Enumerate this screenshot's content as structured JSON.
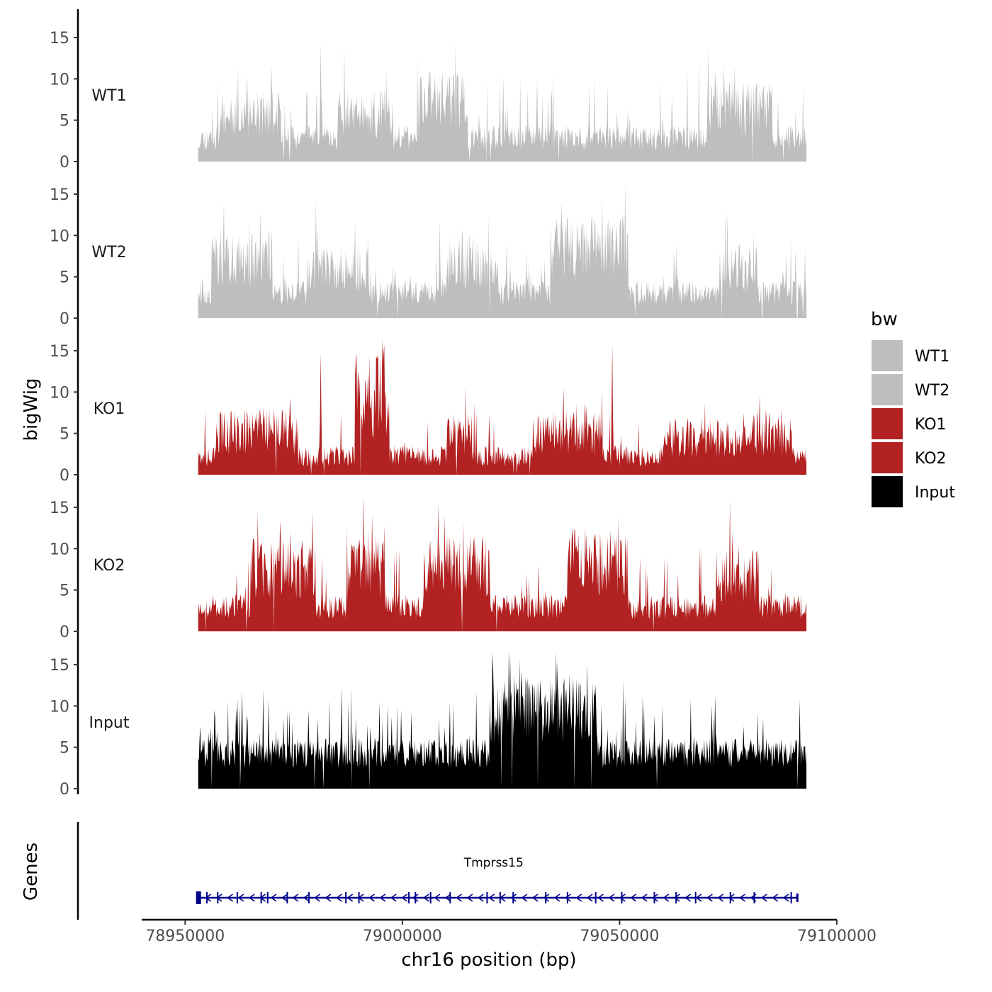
{
  "chart_data": {
    "type": "area",
    "subtype": "genome-browser-tracks",
    "y_axis_label": "bigWig",
    "x_axis_label": "chr16 position (bp)",
    "xlim": [
      78940000,
      79100000
    ],
    "x_ticks": [
      78950000,
      79000000,
      79050000,
      79100000
    ],
    "x_tick_labels": [
      "78950000",
      "79000000",
      "79050000",
      "79100000"
    ],
    "ylim": [
      0,
      16.5
    ],
    "y_ticks": [
      0,
      5,
      10,
      15
    ],
    "y_tick_labels": [
      "0",
      "5",
      "10",
      "15"
    ],
    "data_range": [
      78953000,
      79093000
    ],
    "tracks": [
      {
        "name": "WT1",
        "label": "WT1",
        "color": "#bebebe",
        "seed": 11,
        "base": 1.4,
        "noise": 3.0,
        "spike_prob": 0.07,
        "spike_max": 8.5,
        "domains": [
          [
            78958000,
            78972000,
            1.0
          ],
          [
            78985000,
            78998000,
            1.0
          ],
          [
            79004000,
            79015000,
            1.5
          ],
          [
            79070000,
            79085000,
            1.2
          ]
        ],
        "peaks": [
          [
            78969800,
            12.8
          ],
          [
            78978000,
            11.2
          ],
          [
            78981200,
            15.0
          ],
          [
            78993500,
            9.0
          ],
          [
            79012500,
            8.6
          ],
          [
            79031000,
            10.8
          ],
          [
            79043000,
            9.4
          ],
          [
            79074000,
            11.8
          ],
          [
            79076500,
            12.0
          ],
          [
            79084000,
            9.0
          ]
        ]
      },
      {
        "name": "WT2",
        "label": "WT2",
        "color": "#bebebe",
        "seed": 23,
        "base": 1.6,
        "noise": 3.0,
        "spike_prob": 0.07,
        "spike_max": 6.0,
        "domains": [
          [
            78956000,
            78970000,
            1.3
          ],
          [
            78978000,
            78992000,
            1.0
          ],
          [
            79010000,
            79022000,
            1.2
          ],
          [
            79034000,
            79052000,
            1.8
          ],
          [
            79073000,
            79082000,
            1.0
          ]
        ],
        "peaks": [
          [
            78969900,
            12.3
          ],
          [
            78980500,
            9.8
          ],
          [
            79008600,
            12.0
          ],
          [
            79024000,
            9.6
          ],
          [
            79042000,
            12.2
          ],
          [
            79050000,
            12.0
          ],
          [
            79090500,
            8.5
          ]
        ]
      },
      {
        "name": "KO1",
        "label": "KO1",
        "color": "#b22222",
        "seed": 37,
        "base": 1.0,
        "noise": 2.5,
        "spike_prob": 0.05,
        "spike_max": 6.0,
        "domains": [
          [
            78957000,
            78976000,
            1.3
          ],
          [
            78989000,
            78997000,
            3.5
          ],
          [
            79010000,
            79016000,
            1.2
          ],
          [
            79030000,
            79046000,
            1.2
          ],
          [
            79060000,
            79090000,
            1.0
          ]
        ],
        "peaks": [
          [
            78968000,
            9.8
          ],
          [
            78981200,
            15.5
          ],
          [
            78989500,
            11.2
          ],
          [
            78993500,
            10.5
          ],
          [
            79012000,
            7.2
          ],
          [
            79020000,
            8.2
          ],
          [
            79037000,
            7.4
          ],
          [
            79048300,
            16.0
          ]
        ]
      },
      {
        "name": "KO2",
        "label": "KO2",
        "color": "#b22222",
        "seed": 53,
        "base": 1.5,
        "noise": 3.0,
        "spike_prob": 0.08,
        "spike_max": 7.0,
        "domains": [
          [
            78965000,
            78980000,
            1.5
          ],
          [
            78987000,
            78996000,
            1.5
          ],
          [
            79005000,
            79020000,
            1.6
          ],
          [
            79038000,
            79052000,
            1.8
          ],
          [
            79072000,
            79082000,
            1.2
          ]
        ],
        "peaks": [
          [
            78981500,
            9.0
          ],
          [
            78990000,
            14.2
          ],
          [
            78994000,
            13.4
          ],
          [
            79009000,
            11.0
          ],
          [
            79015000,
            11.4
          ],
          [
            79020000,
            10.0
          ],
          [
            79043000,
            10.8
          ],
          [
            79048500,
            10.2
          ],
          [
            79076000,
            13.2
          ]
        ]
      },
      {
        "name": "Input",
        "label": "Input",
        "color": "#000000",
        "seed": 71,
        "base": 2.5,
        "noise": 3.6,
        "spike_prob": 0.12,
        "spike_max": 7.5,
        "domains": [
          [
            79020000,
            79045000,
            1.2
          ]
        ],
        "peaks": [
          [
            78962000,
            12.2
          ],
          [
            78969200,
            11.0
          ],
          [
            78986000,
            12.8
          ],
          [
            79023500,
            15.3
          ],
          [
            79029000,
            12.0
          ],
          [
            79042000,
            15.2
          ],
          [
            79058000,
            10.2
          ],
          [
            79072000,
            12.0
          ],
          [
            79083000,
            9.5
          ]
        ]
      }
    ],
    "legend": {
      "title": "bw",
      "position": "right",
      "entries": [
        {
          "label": "WT1",
          "color": "#bebebe"
        },
        {
          "label": "WT2",
          "color": "#bebebe"
        },
        {
          "label": "KO1",
          "color": "#b22222"
        },
        {
          "label": "KO2",
          "color": "#b22222"
        },
        {
          "label": "Input",
          "color": "#000000"
        }
      ]
    },
    "genes_track": {
      "label": "Genes",
      "gene_name": "Tmprss15",
      "strand": "-",
      "start": 78953000,
      "end": 79091000,
      "color": "#00008b",
      "exons": [
        78955000,
        78957500,
        78962000,
        78967500,
        78969000,
        78973500,
        78978500,
        78987000,
        78990000,
        79001500,
        79003000,
        79006500,
        79011000,
        79019500,
        79022500,
        79025500,
        79033000,
        79038000,
        79044500,
        79050500,
        79058000,
        79063000,
        79067500,
        79075500,
        79081000,
        79089500
      ]
    }
  }
}
